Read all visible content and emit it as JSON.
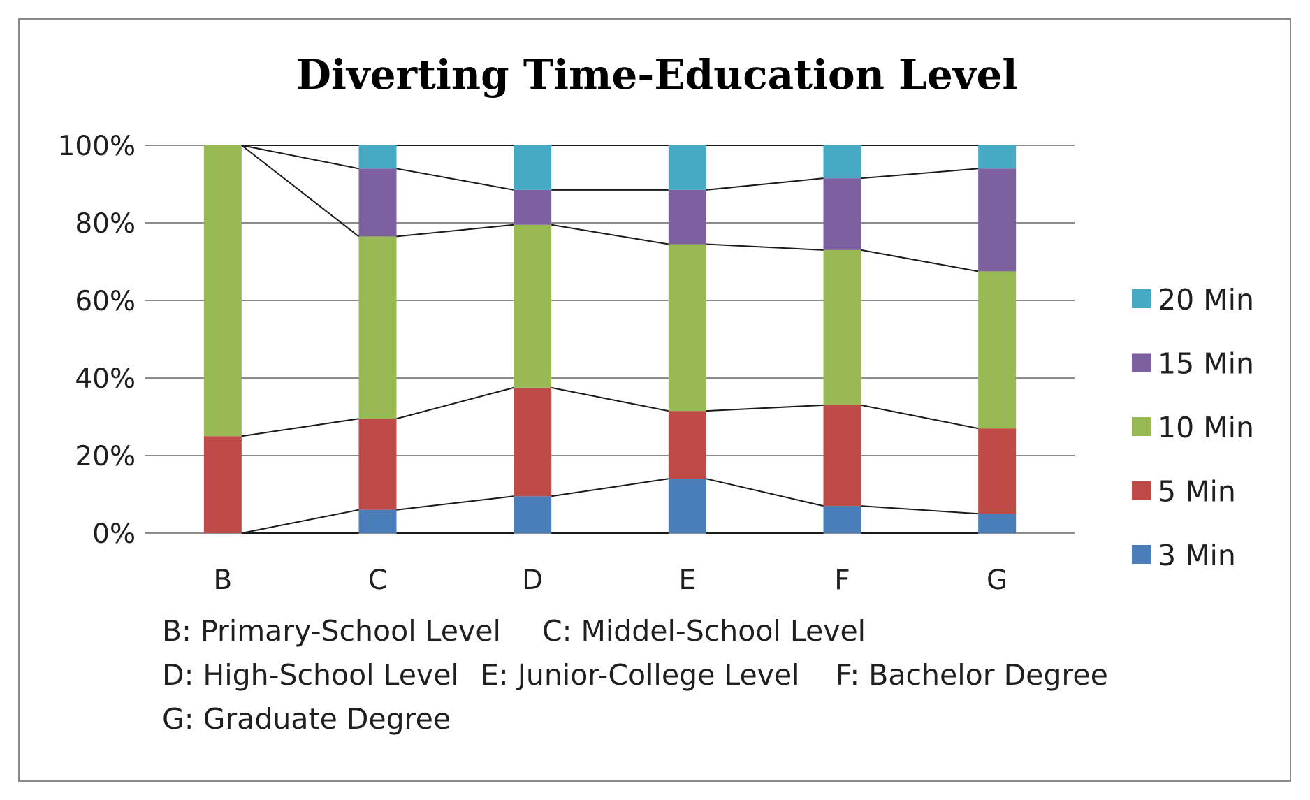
{
  "chart_data": {
    "type": "bar",
    "stacked": true,
    "percent": true,
    "title": "Diverting Time-Education Level",
    "categories": [
      "B",
      "C",
      "D",
      "E",
      "F",
      "G"
    ],
    "y_ticks": [
      "0%",
      "20%",
      "40%",
      "60%",
      "80%",
      "100%"
    ],
    "ylim": [
      0,
      100
    ],
    "grid": true,
    "series_lines": true,
    "legend_position": "right",
    "series": [
      {
        "name": "3 Min",
        "color": "#4a7ebb",
        "values": [
          0,
          6,
          9.5,
          14,
          7,
          5
        ]
      },
      {
        "name": "5 Min",
        "color": "#be4b48",
        "values": [
          25,
          23.5,
          28,
          17.5,
          26,
          22
        ]
      },
      {
        "name": "10 Min",
        "color": "#98b954",
        "values": [
          75,
          47,
          42,
          43,
          40,
          40.5
        ]
      },
      {
        "name": "15 Min",
        "color": "#7d60a0",
        "values": [
          0,
          17.5,
          9,
          14,
          18.5,
          26.5
        ]
      },
      {
        "name": "20 Min",
        "color": "#46aac5",
        "values": [
          0,
          6,
          11.5,
          11.5,
          8.5,
          6
        ]
      }
    ],
    "category_notes": [
      [
        "B: Primary-School Level",
        "C: Middel-School Level"
      ],
      [
        "D: High-School Level",
        "E: Junior-College Level",
        "F: Bachelor Degree"
      ],
      [
        "G: Graduate Degree"
      ]
    ]
  }
}
